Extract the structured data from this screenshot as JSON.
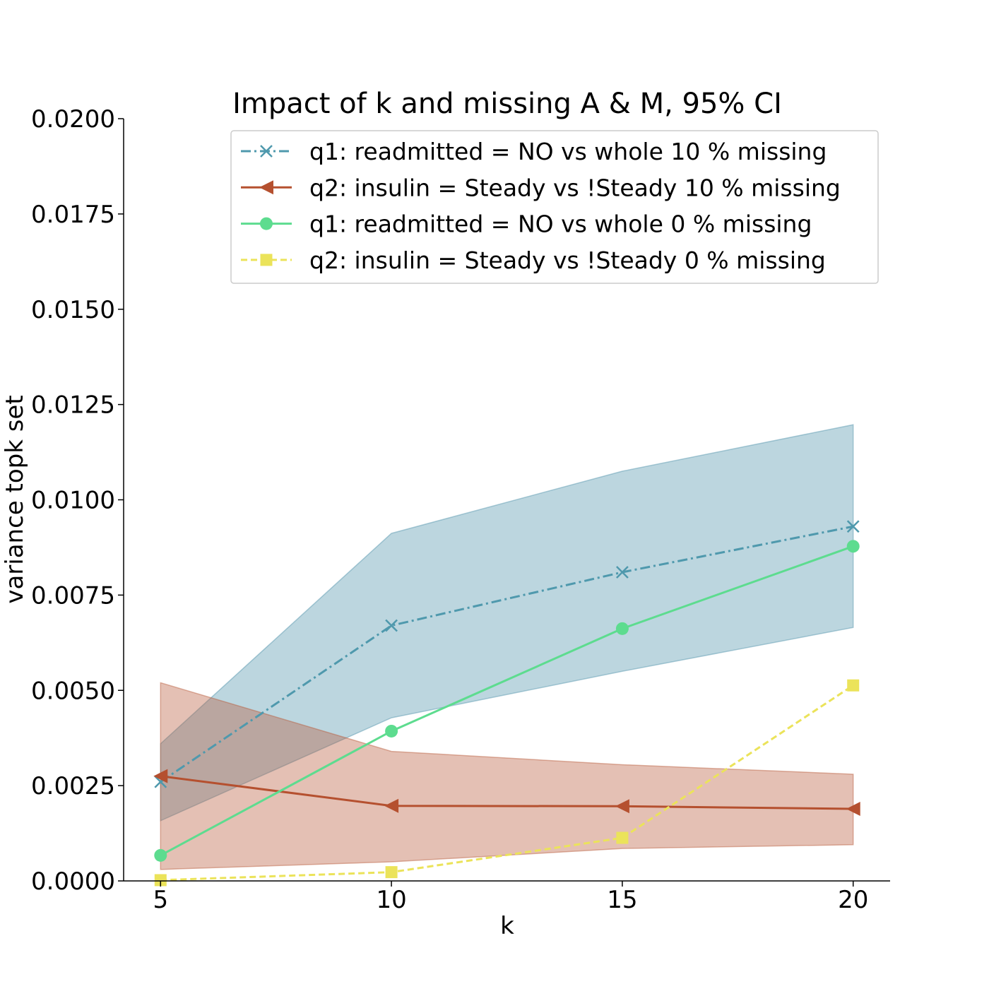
{
  "chart_data": {
    "type": "line",
    "title": "Impact of k and missing A & M, 95% CI",
    "xlabel": "k",
    "ylabel": "variance topk set",
    "x": [
      5,
      10,
      15,
      20
    ],
    "xlim": [
      4.2,
      20.8
    ],
    "ylim": [
      0,
      0.02
    ],
    "xticks": [
      5,
      10,
      15,
      20
    ],
    "xtick_labels": [
      "5",
      "10",
      "15",
      "20"
    ],
    "yticks": [
      0,
      0.0025,
      0.005,
      0.0075,
      0.01,
      0.0125,
      0.015,
      0.0175,
      0.02
    ],
    "ytick_labels": [
      "0.0000",
      "0.0025",
      "0.0050",
      "0.0075",
      "0.0100",
      "0.0125",
      "0.0150",
      "0.0175",
      "0.0200"
    ],
    "grid": false,
    "legend_position": "top-right",
    "series": [
      {
        "name": "q1: readmitted = NO vs whole 10 % missing",
        "values": [
          0.0026,
          0.0067,
          0.0081,
          0.0093
        ],
        "ci_lower": [
          0.00158,
          0.00428,
          0.0055,
          0.00665
        ],
        "ci_upper": [
          0.0036,
          0.00912,
          0.01075,
          0.01197
        ],
        "color": "#4f99ad",
        "band_color": "#4f93ab",
        "marker": "x",
        "line_style": "dashdot"
      },
      {
        "name": "q2: insulin = Steady vs !Steady 10 % missing",
        "values": [
          0.00275,
          0.00197,
          0.00196,
          0.00189
        ],
        "ci_lower": [
          0.0003,
          0.0005,
          0.00085,
          0.00095
        ],
        "ci_upper": [
          0.0052,
          0.0034,
          0.00305,
          0.0028
        ],
        "color": "#b5502f",
        "band_color": "#b85a3a",
        "marker": "triangle-left",
        "line_style": "solid"
      },
      {
        "name": "q1: readmitted = NO vs whole 0 % missing",
        "values": [
          0.00067,
          0.00393,
          0.00662,
          0.00878
        ],
        "color": "#5ddc8f",
        "marker": "circle",
        "line_style": "solid"
      },
      {
        "name": "q2: insulin = Steady vs !Steady 0 % missing",
        "values": [
          2e-05,
          0.00023,
          0.00113,
          0.00513
        ],
        "color": "#ebe35a",
        "marker": "square",
        "line_style": "dashed"
      }
    ]
  }
}
